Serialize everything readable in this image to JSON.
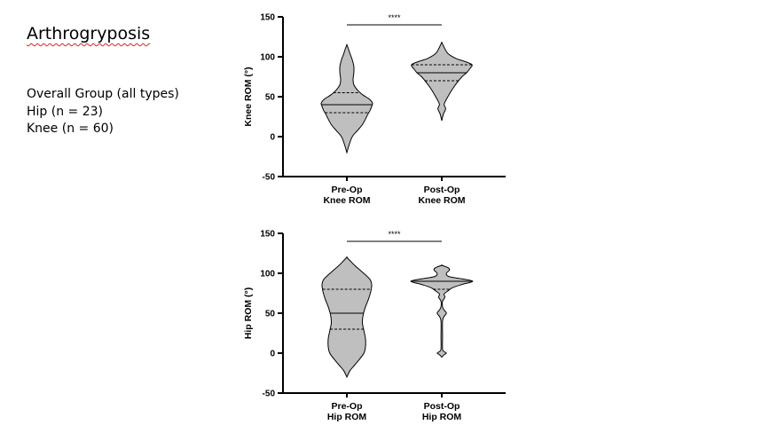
{
  "slide": {
    "title": "Arthrogryposis",
    "lines": [
      "Overall Group (all types)",
      "Hip (n = 23)",
      "Knee (n = 60)"
    ]
  },
  "chart_data": [
    {
      "type": "violin",
      "ylabel": "Knee ROM (°)",
      "ylim": [
        -50,
        150
      ],
      "yticks": [
        -50,
        0,
        50,
        100,
        150
      ],
      "categories": [
        "Pre-Op Knee ROM",
        "Post-Op Knee ROM"
      ],
      "category_lines": [
        [
          "Pre-Op",
          "Knee ROM"
        ],
        [
          "Post-Op",
          "Knee ROM"
        ]
      ],
      "significance": "****",
      "violins": [
        {
          "category": "Pre-Op Knee ROM",
          "min": -20,
          "q1": 30,
          "median": 40,
          "q3": 55,
          "max": 115,
          "profile": [
            [
              -20,
              0
            ],
            [
              -10,
              3
            ],
            [
              0,
              7
            ],
            [
              8,
              14
            ],
            [
              15,
              20
            ],
            [
              22,
              24
            ],
            [
              28,
              27
            ],
            [
              33,
              30
            ],
            [
              38,
              32
            ],
            [
              42,
              33
            ],
            [
              47,
              29
            ],
            [
              52,
              21
            ],
            [
              58,
              14
            ],
            [
              65,
              9
            ],
            [
              72,
              8
            ],
            [
              80,
              9
            ],
            [
              88,
              9
            ],
            [
              96,
              7
            ],
            [
              104,
              4
            ],
            [
              110,
              2
            ],
            [
              115,
              0
            ]
          ]
        },
        {
          "category": "Post-Op Knee ROM",
          "min": 20,
          "q1": 70,
          "median": 80,
          "q3": 90,
          "max": 118,
          "profile": [
            [
              20,
              0
            ],
            [
              28,
              2
            ],
            [
              35,
              5
            ],
            [
              40,
              3
            ],
            [
              45,
              5
            ],
            [
              52,
              9
            ],
            [
              60,
              14
            ],
            [
              68,
              20
            ],
            [
              75,
              26
            ],
            [
              80,
              32
            ],
            [
              85,
              36
            ],
            [
              90,
              39
            ],
            [
              94,
              30
            ],
            [
              98,
              18
            ],
            [
              104,
              8
            ],
            [
              110,
              4
            ],
            [
              114,
              2
            ],
            [
              118,
              0
            ]
          ]
        }
      ]
    },
    {
      "type": "violin",
      "ylabel": "Hip ROM (°)",
      "ylim": [
        -50,
        150
      ],
      "yticks": [
        -50,
        0,
        50,
        100,
        150
      ],
      "categories": [
        "Pre-Op Hip ROM",
        "Post-Op Hip ROM"
      ],
      "category_lines": [
        [
          "Pre-Op",
          "Hip ROM"
        ],
        [
          "Post-Op",
          "Hip ROM"
        ]
      ],
      "significance": "****",
      "violins": [
        {
          "category": "Pre-Op Hip ROM",
          "min": -30,
          "q1": 30,
          "median": 50,
          "q3": 80,
          "max": 120,
          "profile": [
            [
              -30,
              0
            ],
            [
              -22,
              4
            ],
            [
              -15,
              10
            ],
            [
              -8,
              16
            ],
            [
              0,
              22
            ],
            [
              8,
              24
            ],
            [
              18,
              24
            ],
            [
              28,
              22
            ],
            [
              38,
              20
            ],
            [
              48,
              21
            ],
            [
              58,
              24
            ],
            [
              68,
              28
            ],
            [
              78,
              31
            ],
            [
              86,
              32
            ],
            [
              92,
              30
            ],
            [
              98,
              24
            ],
            [
              104,
              17
            ],
            [
              110,
              10
            ],
            [
              116,
              4
            ],
            [
              120,
              0
            ]
          ]
        },
        {
          "category": "Post-Op Hip ROM",
          "min": -5,
          "q1": 80,
          "median": 90,
          "q3": 90,
          "max": 110,
          "profile": [
            [
              -5,
              0
            ],
            [
              -2,
              3
            ],
            [
              0,
              6
            ],
            [
              2,
              3
            ],
            [
              5,
              1
            ],
            [
              20,
              1
            ],
            [
              40,
              1
            ],
            [
              46,
              3
            ],
            [
              50,
              6
            ],
            [
              54,
              3
            ],
            [
              58,
              1
            ],
            [
              65,
              1
            ],
            [
              70,
              4
            ],
            [
              74,
              3
            ],
            [
              78,
              8
            ],
            [
              82,
              14
            ],
            [
              86,
              26
            ],
            [
              90,
              40
            ],
            [
              93,
              26
            ],
            [
              96,
              9
            ],
            [
              100,
              6
            ],
            [
              104,
              10
            ],
            [
              107,
              8
            ],
            [
              110,
              0
            ]
          ]
        }
      ]
    }
  ]
}
